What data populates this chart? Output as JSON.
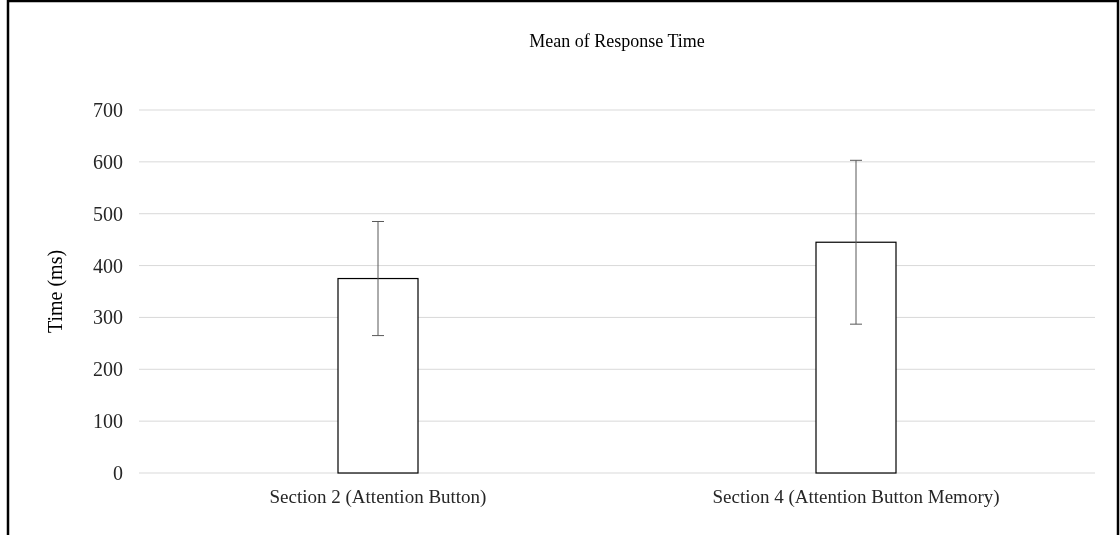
{
  "chart_data": {
    "type": "bar",
    "title": "Mean of Response Time",
    "ylabel": "Time (ms)",
    "categories": [
      "Section 2 (Attention Button)",
      "Section 4 (Attention Button Memory)"
    ],
    "values": [
      375,
      445
    ],
    "errors": [
      110,
      158
    ],
    "color": "#ffffff",
    "ylim": [
      0,
      700
    ],
    "yticks": [
      0,
      100,
      200,
      300,
      400,
      500,
      600,
      700
    ],
    "grid": "y"
  }
}
